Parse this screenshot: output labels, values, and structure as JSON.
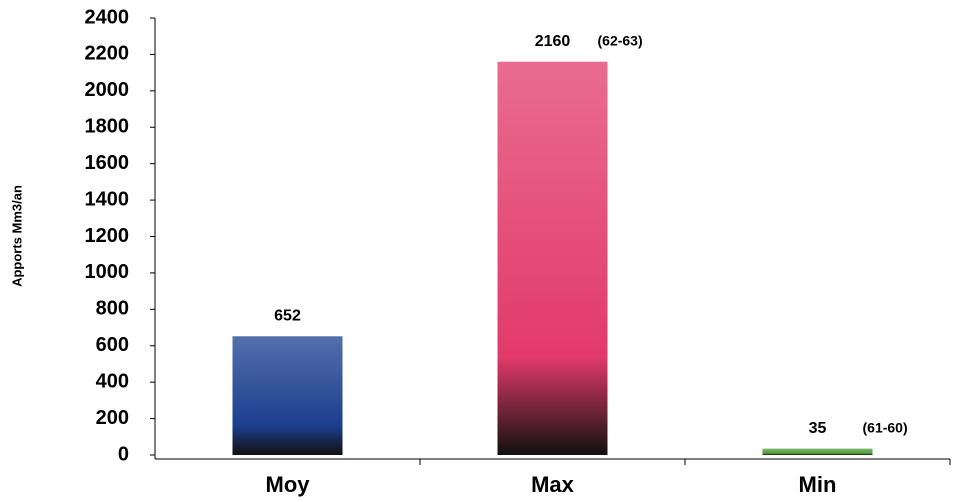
{
  "chart_data": {
    "type": "bar",
    "y_label": "Apports Mm3/an",
    "categories": [
      "Moy",
      "Max",
      "Min"
    ],
    "values": [
      652,
      2160,
      35
    ],
    "annotations": [
      null,
      "(62-63)",
      "(61-60)"
    ],
    "colors": [
      "#1c3f8f",
      "#e23a6a",
      "#4f9f3a"
    ],
    "ylim": [
      0,
      2400
    ],
    "yticks": [
      0,
      200,
      400,
      600,
      800,
      1000,
      1200,
      1400,
      1600,
      1800,
      2000,
      2200,
      2400
    ]
  }
}
